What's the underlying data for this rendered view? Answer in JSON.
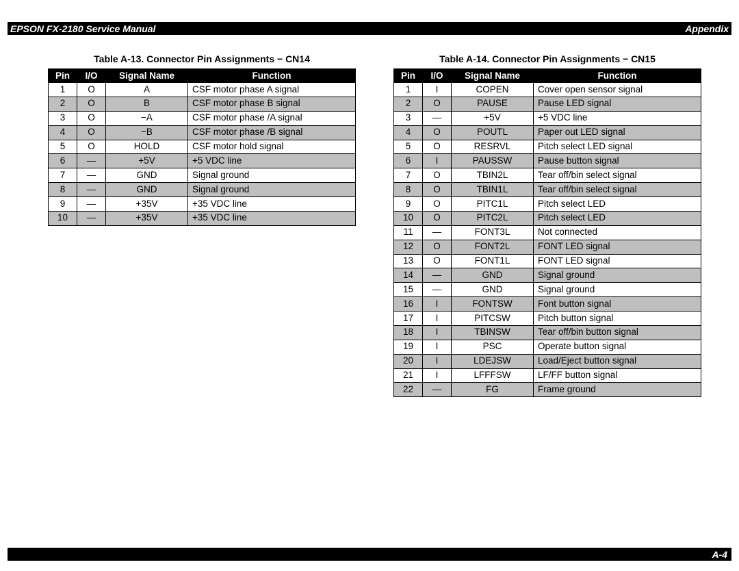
{
  "colors": {
    "bar_bg": "#000000",
    "bar_fg": "#ffffff",
    "shade": "#bfbfbf",
    "border": "#000000",
    "page_bg": "#ffffff"
  },
  "header": {
    "left": "EPSON FX-2180 Service Manual",
    "right": "Appendix"
  },
  "footer": {
    "right": "A-4"
  },
  "tables": [
    {
      "title": "Table A-13. Connector Pin Assignments − CN14",
      "columns": [
        "Pin",
        "I/O",
        "Signal Name",
        "Function"
      ],
      "rows": [
        {
          "pin": "1",
          "io": "O",
          "sig": "A",
          "func": "CSF motor phase A signal",
          "shade": false
        },
        {
          "pin": "2",
          "io": "O",
          "sig": "B",
          "func": "CSF motor phase B signal",
          "shade": true
        },
        {
          "pin": "3",
          "io": "O",
          "sig": "−A",
          "func": "CSF motor phase /A signal",
          "shade": false
        },
        {
          "pin": "4",
          "io": "O",
          "sig": "−B",
          "func": "CSF motor phase /B signal",
          "shade": true
        },
        {
          "pin": "5",
          "io": "O",
          "sig": "HOLD",
          "func": "CSF motor hold signal",
          "shade": false
        },
        {
          "pin": "6",
          "io": "—",
          "sig": "+5V",
          "func": "+5 VDC line",
          "shade": true
        },
        {
          "pin": "7",
          "io": "—",
          "sig": "GND",
          "func": "Signal ground",
          "shade": false
        },
        {
          "pin": "8",
          "io": "—",
          "sig": "GND",
          "func": "Signal ground",
          "shade": true
        },
        {
          "pin": "9",
          "io": "—",
          "sig": "+35V",
          "func": "+35 VDC line",
          "shade": false
        },
        {
          "pin": "10",
          "io": "—",
          "sig": "+35V",
          "func": "+35 VDC line",
          "shade": true
        }
      ]
    },
    {
      "title": "Table A-14. Connector Pin Assignments − CN15",
      "columns": [
        "Pin",
        "I/O",
        "Signal Name",
        "Function"
      ],
      "rows": [
        {
          "pin": "1",
          "io": "I",
          "sig": "COPEN",
          "func": "Cover open sensor signal",
          "shade": false
        },
        {
          "pin": "2",
          "io": "O",
          "sig": "PAUSE",
          "func": "Pause LED signal",
          "shade": true
        },
        {
          "pin": "3",
          "io": "—",
          "sig": "+5V",
          "func": "+5 VDC line",
          "shade": false
        },
        {
          "pin": "4",
          "io": "O",
          "sig": "POUTL",
          "func": "Paper out LED signal",
          "shade": true
        },
        {
          "pin": "5",
          "io": "O",
          "sig": "RESRVL",
          "func": "Pitch select LED signal",
          "shade": false
        },
        {
          "pin": "6",
          "io": "I",
          "sig": "PAUSSW",
          "func": "Pause button signal",
          "shade": true
        },
        {
          "pin": "7",
          "io": "O",
          "sig": "TBIN2L",
          "func": "Tear off/bin select signal",
          "shade": false
        },
        {
          "pin": "8",
          "io": "O",
          "sig": "TBIN1L",
          "func": "Tear off/bin select signal",
          "shade": true
        },
        {
          "pin": "9",
          "io": "O",
          "sig": "PITC1L",
          "func": "Pitch select LED",
          "shade": false
        },
        {
          "pin": "10",
          "io": "O",
          "sig": "PITC2L",
          "func": "Pitch select LED",
          "shade": true
        },
        {
          "pin": "11",
          "io": "—",
          "sig": "FONT3L",
          "func": "Not connected",
          "shade": false
        },
        {
          "pin": "12",
          "io": "O",
          "sig": "FONT2L",
          "func": "FONT LED signal",
          "shade": true
        },
        {
          "pin": "13",
          "io": "O",
          "sig": "FONT1L",
          "func": "FONT LED signal",
          "shade": false
        },
        {
          "pin": "14",
          "io": "—",
          "sig": "GND",
          "func": "Signal ground",
          "shade": true
        },
        {
          "pin": "15",
          "io": "—",
          "sig": "GND",
          "func": "Signal ground",
          "shade": false
        },
        {
          "pin": "16",
          "io": "I",
          "sig": "FONTSW",
          "func": "Font button signal",
          "shade": true
        },
        {
          "pin": "17",
          "io": "I",
          "sig": "PITCSW",
          "func": "Pitch button signal",
          "shade": false
        },
        {
          "pin": "18",
          "io": "I",
          "sig": "TBINSW",
          "func": "Tear off/bin button signal",
          "shade": true
        },
        {
          "pin": "19",
          "io": "I",
          "sig": "PSC",
          "func": "Operate button signal",
          "shade": false
        },
        {
          "pin": "20",
          "io": "I",
          "sig": "LDEJSW",
          "func": "Load/Eject button signal",
          "shade": true
        },
        {
          "pin": "21",
          "io": "I",
          "sig": "LFFFSW",
          "func": "LF/FF button signal",
          "shade": false
        },
        {
          "pin": "22",
          "io": "—",
          "sig": "FG",
          "func": "Frame ground",
          "shade": true
        }
      ]
    }
  ]
}
